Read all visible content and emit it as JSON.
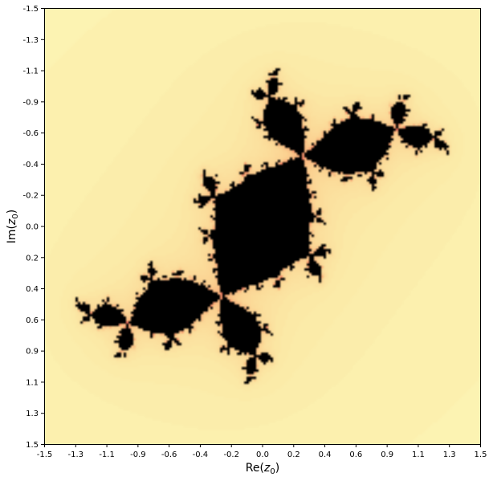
{
  "chart_data": {
    "type": "heatmap",
    "title": "",
    "xlabel": "Re(z0)",
    "ylabel": "Im(z0)",
    "xlabel_parts": {
      "main": "Re(",
      "sub": "z",
      "subsub": "0",
      "close": ")"
    },
    "ylabel_parts": {
      "main": "Im(",
      "sub": "z",
      "subsub": "0",
      "close": ")"
    },
    "xlim": [
      -1.5,
      1.5
    ],
    "ylim": [
      -1.5,
      1.5
    ],
    "y_inverted": true,
    "x_ticks": [
      "-1.5",
      "-1.3",
      "-1.1",
      "-0.9",
      "-0.6",
      "-0.4",
      "-0.2",
      "0.0",
      "0.2",
      "0.4",
      "0.6",
      "0.9",
      "1.1",
      "1.3",
      "1.5"
    ],
    "y_ticks": [
      "-1.5",
      "-1.3",
      "-1.1",
      "-0.9",
      "-0.6",
      "-0.4",
      "-0.2",
      "0.0",
      "0.2",
      "0.4",
      "0.6",
      "0.9",
      "1.1",
      "1.3",
      "1.5"
    ],
    "grid": false,
    "legend": "none",
    "set": "filled Julia set (black) with escape-time coloring",
    "colormap": [
      "#fdfbba",
      "#fbe9a6",
      "#fbd090",
      "#f8a070",
      "#ef6f61",
      "#000000"
    ],
    "inside_color": "#000000",
    "julia_c": {
      "re": -0.12,
      "im": 0.76
    },
    "max_iter": 60
  }
}
